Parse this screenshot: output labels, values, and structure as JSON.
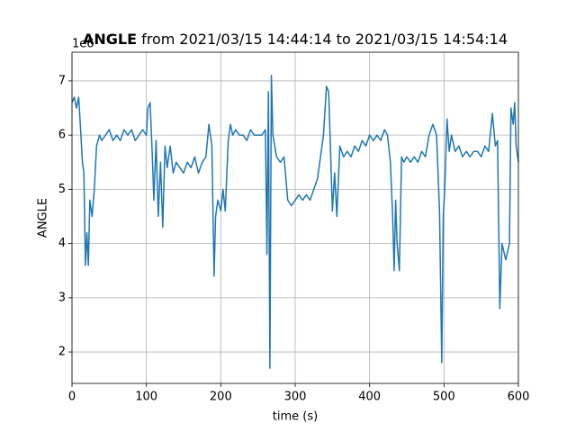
{
  "chart_data": {
    "type": "line",
    "title_bold": "ANGLE",
    "title": "from 2021/03/15 14:44:14 to 2021/03/15 14:54:14",
    "offset_text": "1e6",
    "x_label": "time (s)",
    "y_label": "ANGLE",
    "xlim": [
      0,
      600
    ],
    "ylim": [
      1.42,
      7.53
    ],
    "xticks": [
      0,
      100,
      200,
      300,
      400,
      500,
      600
    ],
    "yticks": [
      2,
      3,
      4,
      5,
      6,
      7
    ],
    "grid": true,
    "x": [
      0,
      3,
      6,
      9,
      12,
      14,
      16,
      18,
      20,
      22,
      24,
      27,
      30,
      33,
      37,
      40,
      45,
      50,
      55,
      60,
      65,
      70,
      75,
      80,
      85,
      90,
      95,
      100,
      102,
      105,
      108,
      110,
      113,
      116,
      119,
      122,
      125,
      128,
      132,
      136,
      140,
      145,
      150,
      155,
      160,
      165,
      170,
      175,
      180,
      184,
      188,
      191,
      193,
      196,
      200,
      203,
      206,
      210,
      213,
      216,
      220,
      225,
      230,
      235,
      240,
      245,
      250,
      255,
      260,
      262,
      264,
      266,
      268,
      270,
      275,
      280,
      285,
      290,
      295,
      300,
      305,
      310,
      315,
      320,
      325,
      330,
      334,
      338,
      342,
      345,
      348,
      350,
      353,
      356,
      360,
      365,
      370,
      375,
      380,
      385,
      390,
      395,
      400,
      405,
      410,
      415,
      420,
      424,
      428,
      431,
      433,
      435,
      437,
      440,
      443,
      446,
      450,
      455,
      460,
      465,
      470,
      475,
      480,
      485,
      490,
      494,
      497,
      499,
      501,
      504,
      507,
      510,
      515,
      520,
      525,
      530,
      535,
      540,
      545,
      550,
      555,
      560,
      565,
      569,
      572,
      575,
      578,
      583,
      588,
      590,
      593,
      595,
      597,
      600
    ],
    "series": [
      {
        "name": "ANGLE",
        "color": "#1f77b4",
        "values": [
          6.6,
          6.7,
          6.5,
          6.7,
          6.0,
          5.5,
          5.3,
          3.6,
          4.2,
          3.6,
          4.8,
          4.5,
          5.0,
          5.8,
          6.0,
          5.9,
          6.0,
          6.1,
          5.9,
          6.0,
          5.9,
          6.1,
          6.0,
          6.1,
          5.9,
          6.0,
          6.1,
          6.0,
          6.5,
          6.6,
          5.6,
          4.8,
          5.9,
          4.5,
          5.5,
          4.3,
          5.8,
          5.4,
          5.8,
          5.3,
          5.5,
          5.4,
          5.3,
          5.5,
          5.4,
          5.6,
          5.3,
          5.5,
          5.6,
          6.2,
          5.8,
          3.4,
          4.5,
          4.8,
          4.6,
          5.0,
          4.6,
          5.9,
          6.2,
          6.0,
          6.1,
          6.0,
          6.0,
          5.9,
          6.1,
          6.0,
          6.0,
          6.0,
          6.1,
          3.8,
          6.8,
          1.7,
          7.1,
          6.0,
          5.6,
          5.5,
          5.6,
          4.8,
          4.7,
          4.8,
          4.9,
          4.8,
          4.9,
          4.8,
          5.0,
          5.2,
          5.6,
          6.0,
          6.9,
          6.8,
          5.5,
          4.6,
          5.3,
          4.5,
          5.8,
          5.6,
          5.7,
          5.6,
          5.8,
          5.7,
          5.9,
          5.8,
          6.0,
          5.9,
          6.0,
          5.9,
          6.1,
          6.0,
          5.5,
          4.5,
          3.5,
          4.8,
          4.0,
          3.5,
          5.6,
          5.5,
          5.6,
          5.5,
          5.6,
          5.5,
          5.7,
          5.6,
          6.0,
          6.2,
          6.0,
          4.6,
          1.8,
          4.5,
          5.0,
          6.3,
          5.7,
          6.0,
          5.7,
          5.8,
          5.6,
          5.7,
          5.6,
          5.7,
          5.7,
          5.6,
          5.8,
          5.7,
          6.4,
          5.8,
          5.9,
          2.8,
          4.0,
          3.7,
          4.0,
          6.5,
          6.2,
          6.6,
          5.8,
          5.5
        ]
      }
    ]
  }
}
